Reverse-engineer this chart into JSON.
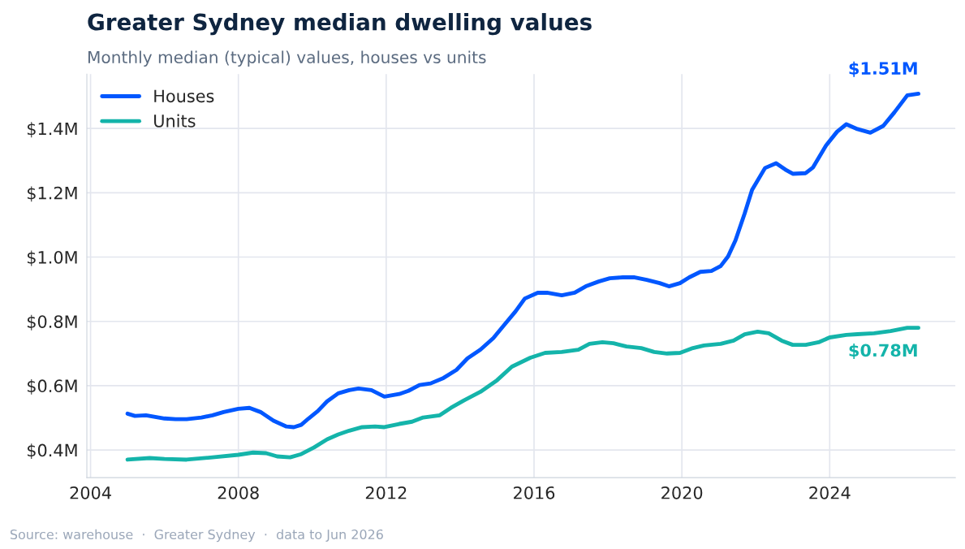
{
  "chart_data": {
    "type": "line",
    "title": "Greater Sydney median dwelling values",
    "subtitle": "Monthly median (typical) values, houses vs units",
    "annotations": [
      {
        "text": "$1.51M",
        "x": 2026.4,
        "y": 1.508
      },
      {
        "text": "$0.78M",
        "x": 2026.4,
        "y": 0.78
      },
      "Source: warehouse  ·  Greater Sydney  ·  data to Jun 2026"
    ],
    "series": [
      {
        "name": "Houses",
        "color": "#0057ff",
        "x": [
          2005.0,
          2005.2,
          2005.5,
          2006.0,
          2006.3,
          2006.6,
          2007.0,
          2007.3,
          2007.6,
          2008.0,
          2008.3,
          2008.6,
          2008.95,
          2009.3,
          2009.5,
          2009.7,
          2009.9,
          2010.15,
          2010.4,
          2010.7,
          2011.0,
          2011.25,
          2011.6,
          2011.95,
          2012.35,
          2012.6,
          2012.9,
          2013.2,
          2013.55,
          2013.9,
          2014.2,
          2014.55,
          2014.9,
          2015.2,
          2015.5,
          2015.75,
          2016.1,
          2016.35,
          2016.75,
          2017.1,
          2017.4,
          2017.75,
          2018.05,
          2018.4,
          2018.7,
          2019.05,
          2019.4,
          2019.65,
          2019.95,
          2020.2,
          2020.5,
          2020.8,
          2021.05,
          2021.25,
          2021.45,
          2021.7,
          2021.9,
          2022.25,
          2022.55,
          2022.8,
          2023.0,
          2023.35,
          2023.55,
          2023.9,
          2024.2,
          2024.45,
          2024.75,
          2025.1,
          2025.45,
          2025.75,
          2026.1,
          2026.4
        ],
        "values": [
          0.513,
          0.506,
          0.508,
          0.498,
          0.496,
          0.496,
          0.501,
          0.508,
          0.518,
          0.528,
          0.531,
          0.518,
          0.491,
          0.473,
          0.471,
          0.478,
          0.498,
          0.521,
          0.551,
          0.576,
          0.586,
          0.591,
          0.586,
          0.566,
          0.574,
          0.584,
          0.602,
          0.607,
          0.624,
          0.649,
          0.685,
          0.712,
          0.748,
          0.79,
          0.831,
          0.871,
          0.889,
          0.889,
          0.881,
          0.889,
          0.909,
          0.924,
          0.934,
          0.937,
          0.937,
          0.929,
          0.919,
          0.909,
          0.919,
          0.937,
          0.954,
          0.957,
          0.972,
          1.002,
          1.052,
          1.136,
          1.209,
          1.277,
          1.292,
          1.272,
          1.259,
          1.261,
          1.279,
          1.347,
          1.39,
          1.413,
          1.398,
          1.387,
          1.408,
          1.45,
          1.503,
          1.508
        ]
      },
      {
        "name": "Units",
        "color": "#14b4aa",
        "x": [
          2005.0,
          2005.6,
          2006.0,
          2006.6,
          2007.3,
          2008.0,
          2008.4,
          2008.75,
          2009.05,
          2009.4,
          2009.7,
          2010.05,
          2010.4,
          2010.7,
          2011.0,
          2011.35,
          2011.7,
          2011.95,
          2012.35,
          2012.7,
          2013.0,
          2013.45,
          2013.75,
          2014.1,
          2014.55,
          2015.0,
          2015.4,
          2015.9,
          2016.3,
          2016.75,
          2017.2,
          2017.5,
          2017.85,
          2018.15,
          2018.5,
          2018.9,
          2019.25,
          2019.6,
          2019.95,
          2020.3,
          2020.6,
          2021.05,
          2021.4,
          2021.7,
          2022.05,
          2022.35,
          2022.7,
          2023.0,
          2023.35,
          2023.7,
          2024.0,
          2024.45,
          2024.75,
          2025.2,
          2025.65,
          2026.1,
          2026.4
        ],
        "values": [
          0.37,
          0.375,
          0.372,
          0.37,
          0.377,
          0.385,
          0.392,
          0.39,
          0.38,
          0.377,
          0.387,
          0.408,
          0.433,
          0.448,
          0.46,
          0.471,
          0.473,
          0.471,
          0.481,
          0.488,
          0.501,
          0.508,
          0.531,
          0.554,
          0.581,
          0.617,
          0.659,
          0.687,
          0.702,
          0.705,
          0.712,
          0.73,
          0.735,
          0.732,
          0.722,
          0.717,
          0.705,
          0.7,
          0.702,
          0.717,
          0.725,
          0.73,
          0.74,
          0.76,
          0.768,
          0.763,
          0.74,
          0.727,
          0.727,
          0.735,
          0.75,
          0.758,
          0.76,
          0.763,
          0.77,
          0.78,
          0.78
        ]
      }
    ],
    "xlim": [
      2003.9,
      2027.4
    ],
    "xticks": [
      2004,
      2008,
      2012,
      2016,
      2020,
      2024
    ],
    "ylim": [
      0.314,
      1.569
    ],
    "yticks": [
      {
        "value": 0.4,
        "label": "$0.4M"
      },
      {
        "value": 0.6,
        "label": "$0.6M"
      },
      {
        "value": 0.8,
        "label": "$0.8M"
      },
      {
        "value": 1.0,
        "label": "$1.0M"
      },
      {
        "value": 1.2,
        "label": "$1.2M"
      },
      {
        "value": 1.4,
        "label": "$1.4M"
      }
    ],
    "grid": true,
    "legend": "top left",
    "marker": "none",
    "line_style": "solid"
  }
}
